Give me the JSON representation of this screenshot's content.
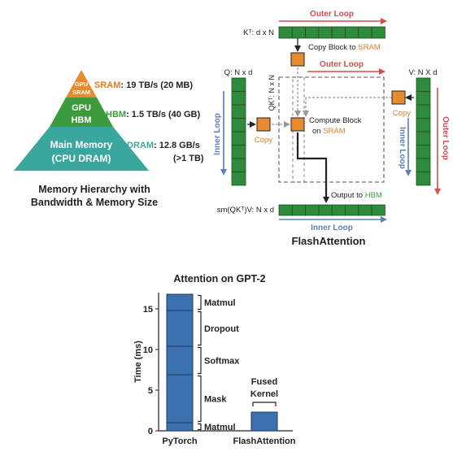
{
  "colors": {
    "sram": "#e88a2e",
    "hbm": "#3c9b3c",
    "dram": "#3aa79f",
    "dram_light": "#7fc6b6",
    "bar_blue": "#3c70ae",
    "cell_green": "#2e8b3b",
    "loop_red": "#d84b4b",
    "loop_blue": "#5b7fb8",
    "arrow_grey": "#999999",
    "text_orange": "#e07b26",
    "text_teal": "#3aa79f",
    "text_green": "#3d9a3d"
  },
  "hierarchy": {
    "levels": [
      {
        "name_lines": [
          "GPU",
          "SRAM"
        ],
        "label_name": "SRAM",
        "label_spec": ": 19 TB/s (20 MB)"
      },
      {
        "name_lines": [
          "GPU",
          "HBM"
        ],
        "label_name": "HBM",
        "label_spec": ": 1.5 TB/s (40 GB)"
      },
      {
        "name_lines": [
          "Main Memory",
          "(CPU DRAM)"
        ],
        "label_name": "DRAM",
        "label_spec": ": 12.8 GB/s",
        "label_spec2": "(>1 TB)"
      }
    ],
    "caption_line1": "Memory Hierarchy with",
    "caption_line2": "Bandwidth & Memory Size"
  },
  "flash": {
    "kt_label": "Kᵀ: d x N",
    "q_label": "Q: N x d",
    "v_label": "V: N X d",
    "qkt_label": "QKᵀ: N x N",
    "out_label": "sm(QKᵀ)V: N x d",
    "outer_loop_top": "Outer Loop",
    "outer_loop_mid": "Outer Loop",
    "outer_loop_right": "Outer Loop",
    "inner_loop_left": "Inner Loop",
    "inner_loop_right": "Inner Loop",
    "inner_loop_bottom": "Inner Loop",
    "copy_block_prefix": "Copy Block to ",
    "copy_block_sram": "SRAM",
    "copy_left": "Copy",
    "copy_right": "Copy",
    "compute_line1": "Compute Block",
    "compute_prefix": "on ",
    "compute_sram": "SRAM",
    "output_prefix": "Output to ",
    "output_hbm": "HBM",
    "title": "FlashAttention"
  },
  "chart_data": {
    "type": "bar",
    "title": "Attention on GPT-2",
    "ylabel": "Time (ms)",
    "ylim": [
      0,
      17
    ],
    "yticks": [
      0,
      5,
      10,
      15
    ],
    "categories": [
      "PyTorch",
      "FlashAttention"
    ],
    "stacks": [
      {
        "category": "PyTorch",
        "segments": [
          {
            "name": "Matmul",
            "value": 1.0
          },
          {
            "name": "Mask",
            "value": 5.9
          },
          {
            "name": "Softmax",
            "value": 3.5
          },
          {
            "name": "Dropout",
            "value": 4.4
          },
          {
            "name": "Matmul",
            "value": 2.0
          }
        ]
      },
      {
        "category": "FlashAttention",
        "segments": [
          {
            "name": "Fused Kernel",
            "value": 2.3
          }
        ]
      }
    ],
    "annotation_line1": "Fused",
    "annotation_line2": "Kernel"
  }
}
